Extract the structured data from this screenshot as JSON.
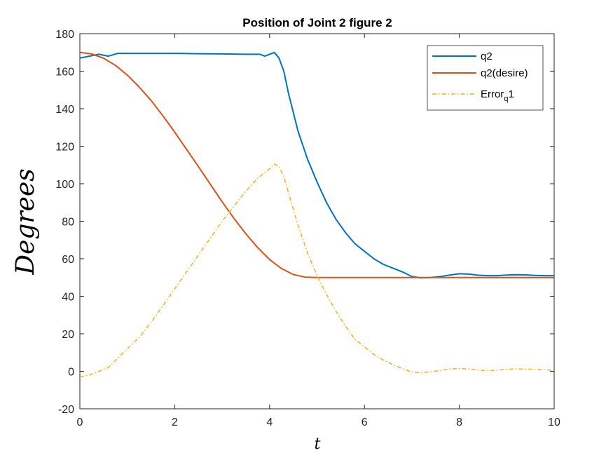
{
  "chart_data": {
    "type": "line",
    "title": "Position of Joint 2 figure 2",
    "xlabel": "t",
    "ylabel": "Degrees",
    "xlim": [
      0,
      10
    ],
    "ylim": [
      -20,
      180
    ],
    "xticks": [
      "0",
      "2",
      "4",
      "6",
      "8",
      "10"
    ],
    "yticks": [
      "-20",
      "0",
      "20",
      "40",
      "60",
      "80",
      "100",
      "120",
      "140",
      "160",
      "180"
    ],
    "grid": false,
    "legend_position": "top-right",
    "series": [
      {
        "name": "q2",
        "style": "solid",
        "color": "#0072BD",
        "x": [
          0,
          0.2,
          0.4,
          0.6,
          0.8,
          1.0,
          1.5,
          2.0,
          2.5,
          3.0,
          3.5,
          3.8,
          3.9,
          4.0,
          4.1,
          4.2,
          4.3,
          4.4,
          4.6,
          4.8,
          5.0,
          5.2,
          5.4,
          5.6,
          5.8,
          6.0,
          6.2,
          6.4,
          6.6,
          6.8,
          7.0,
          7.2,
          7.4,
          7.6,
          7.8,
          8.0,
          8.2,
          8.4,
          8.6,
          8.8,
          9.0,
          9.2,
          9.4,
          9.6,
          9.8,
          10.0
        ],
        "y": [
          167,
          168,
          169,
          168,
          169.5,
          169.5,
          169.5,
          169.5,
          169.3,
          169.2,
          169,
          169,
          168,
          169,
          170,
          167,
          160,
          148,
          128,
          113,
          101,
          90,
          81,
          74,
          68,
          64,
          60,
          57,
          55,
          53,
          50.5,
          49.8,
          50,
          50.5,
          51.3,
          52,
          51.8,
          51.2,
          51,
          51,
          51.3,
          51.5,
          51.4,
          51.1,
          51,
          51
        ]
      },
      {
        "name": "q2(desire)",
        "style": "solid",
        "color": "#D95319",
        "x": [
          0,
          0.25,
          0.5,
          0.75,
          1.0,
          1.25,
          1.5,
          1.75,
          2.0,
          2.25,
          2.5,
          2.75,
          3.0,
          3.25,
          3.5,
          3.75,
          4.0,
          4.25,
          4.5,
          4.75,
          5.0,
          6.0,
          7.0,
          8.0,
          9.0,
          10.0
        ],
        "y": [
          170,
          169.2,
          166.9,
          163.1,
          157.9,
          151.6,
          144.4,
          136.2,
          127.5,
          118.3,
          109.1,
          99.7,
          90.4,
          81.5,
          73.3,
          65.9,
          59.6,
          54.8,
          51.6,
          50.2,
          50,
          50,
          50,
          50,
          50,
          50
        ]
      },
      {
        "name": "Error_q 1",
        "style": "dashdot",
        "color": "#EDB120",
        "x": [
          0,
          0.2,
          0.4,
          0.6,
          0.8,
          1.0,
          1.25,
          1.5,
          1.75,
          2.0,
          2.25,
          2.5,
          2.75,
          3.0,
          3.25,
          3.5,
          3.75,
          3.9,
          4.0,
          4.1,
          4.2,
          4.3,
          4.4,
          4.6,
          4.8,
          5.0,
          5.2,
          5.4,
          5.6,
          5.8,
          6.0,
          6.2,
          6.4,
          6.6,
          6.8,
          7.0,
          7.2,
          7.4,
          7.6,
          7.8,
          8.0,
          8.2,
          8.4,
          8.6,
          8.8,
          9.0,
          9.2,
          9.4,
          9.6,
          9.8,
          10.0
        ],
        "y": [
          -3,
          -2,
          0,
          2,
          7,
          12,
          18,
          26,
          35,
          44,
          53,
          62,
          71,
          80,
          88,
          96,
          103,
          106,
          108,
          110.5,
          109,
          104,
          95,
          78,
          63,
          51,
          41,
          32,
          24,
          17,
          13,
          9,
          6,
          3.5,
          1.5,
          -0.5,
          -0.8,
          -0.3,
          0.5,
          1.2,
          1.5,
          1.2,
          0.6,
          0.4,
          0.6,
          1.0,
          1.3,
          1.2,
          1.0,
          0.8,
          0.5
        ]
      }
    ]
  }
}
